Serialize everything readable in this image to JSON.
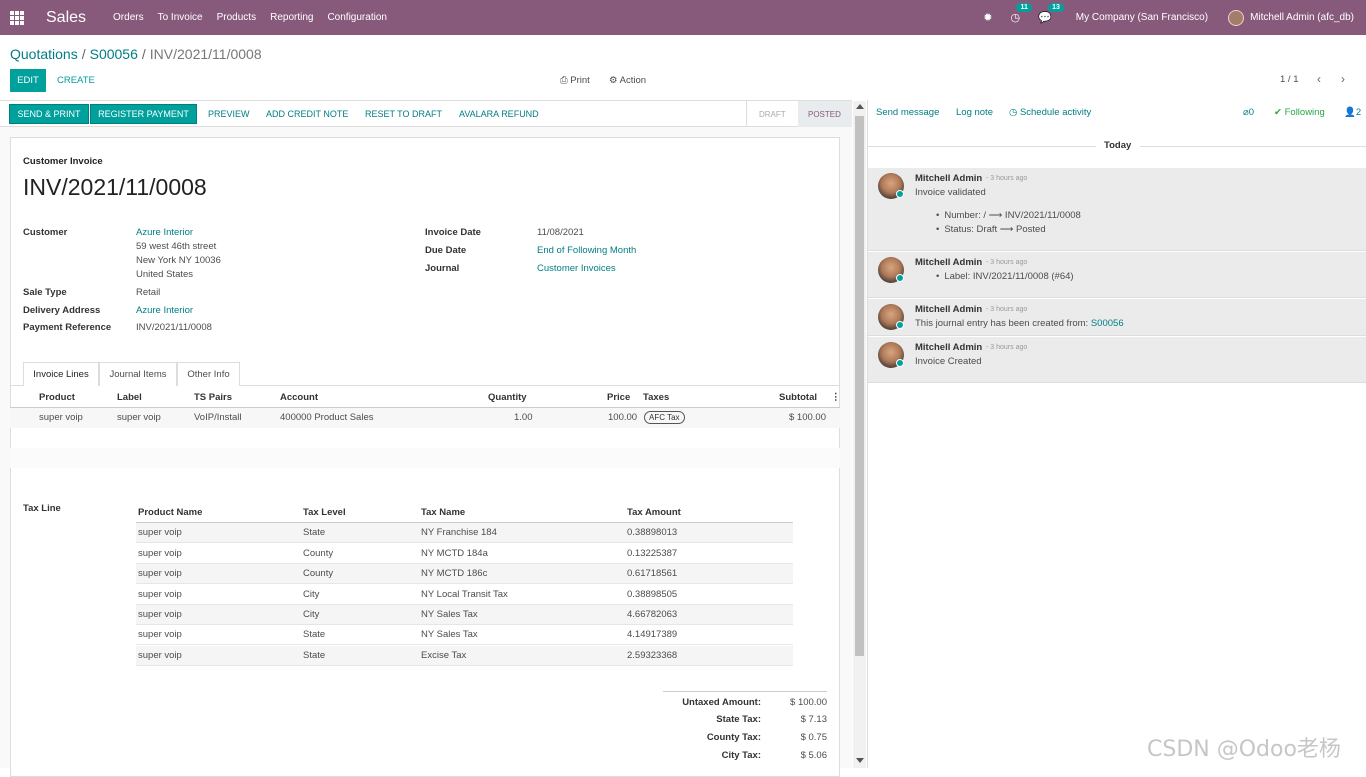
{
  "navbar": {
    "app_name": "Sales",
    "menu": [
      "Orders",
      "To Invoice",
      "Products",
      "Reporting",
      "Configuration"
    ],
    "activity_count": "11",
    "message_count": "13",
    "company": "My Company (San Francisco)",
    "user": "Mitchell Admin (afc_db)"
  },
  "breadcrumb": {
    "root": "Quotations",
    "parent": "S00056",
    "current": "INV/2021/11/0008"
  },
  "control": {
    "edit": "EDIT",
    "create": "CREATE",
    "print": "Print",
    "action": "Action",
    "pager": "1 / 1"
  },
  "statusbar": {
    "send_print": "SEND & PRINT",
    "register_payment": "REGISTER PAYMENT",
    "preview": "PREVIEW",
    "add_credit_note": "ADD CREDIT NOTE",
    "reset_to_draft": "RESET TO DRAFT",
    "avalara_refund": "AVALARA REFUND",
    "stage_draft": "DRAFT",
    "stage_posted": "POSTED"
  },
  "invoice": {
    "type": "Customer Invoice",
    "number": "INV/2021/11/0008",
    "customer_label": "Customer",
    "customer": "Azure Interior",
    "address1": "59 west 46th street",
    "address2": "New York NY 10036",
    "address3": "United States",
    "sale_type_label": "Sale Type",
    "sale_type": "Retail",
    "delivery_label": "Delivery Address",
    "delivery": "Azure Interior",
    "payment_ref_label": "Payment Reference",
    "payment_ref": "INV/2021/11/0008",
    "invoice_date_label": "Invoice Date",
    "invoice_date": "11/08/2021",
    "due_date_label": "Due Date",
    "due_date": "End of Following Month",
    "journal_label": "Journal",
    "journal": "Customer Invoices"
  },
  "tabs": [
    "Invoice Lines",
    "Journal Items",
    "Other Info"
  ],
  "lines": {
    "headers": [
      "Product",
      "Label",
      "TS Pairs",
      "Account",
      "Quantity",
      "Price",
      "Taxes",
      "Subtotal"
    ],
    "row": {
      "product": "super voip",
      "label": "super voip",
      "ts_pairs": "VoIP/Install",
      "account": "400000 Product Sales",
      "quantity": "1.00",
      "price": "100.00",
      "taxes": "AFC Tax",
      "subtotal": "$ 100.00"
    }
  },
  "tax_line": {
    "label": "Tax Line",
    "headers": [
      "Product Name",
      "Tax Level",
      "Tax Name",
      "Tax Amount"
    ],
    "rows": [
      [
        "super voip",
        "State",
        "NY Franchise 184",
        "0.38898013"
      ],
      [
        "super voip",
        "County",
        "NY MCTD 184a",
        "0.13225387"
      ],
      [
        "super voip",
        "County",
        "NY MCTD 186c",
        "0.61718561"
      ],
      [
        "super voip",
        "City",
        "NY Local Transit Tax",
        "0.38898505"
      ],
      [
        "super voip",
        "City",
        "NY Sales Tax",
        "4.66782063"
      ],
      [
        "super voip",
        "State",
        "NY Sales Tax",
        "4.14917389"
      ],
      [
        "super voip",
        "State",
        "Excise Tax",
        "2.59323368"
      ]
    ]
  },
  "totals": [
    {
      "label": "Untaxed Amount:",
      "value": "$ 100.00"
    },
    {
      "label": "State Tax:",
      "value": "$ 7.13"
    },
    {
      "label": "County Tax:",
      "value": "$ 0.75"
    },
    {
      "label": "City Tax:",
      "value": "$ 5.06"
    }
  ],
  "chatter": {
    "send_message": "Send message",
    "log_note": "Log note",
    "schedule_activity": "Schedule activity",
    "attachments": "0",
    "following": "Following",
    "followers": "2",
    "today": "Today",
    "messages": [
      {
        "author": "Mitchell Admin",
        "time": "- 3 hours ago",
        "body": "Invoice validated",
        "bullets": [
          "Number: / ⟶ INV/2021/11/0008",
          "Status: Draft ⟶ Posted"
        ]
      },
      {
        "author": "Mitchell Admin",
        "time": "- 3 hours ago",
        "body": "",
        "bullets": [
          "Label:  INV/2021/11/0008 (#64)"
        ]
      },
      {
        "author": "Mitchell Admin",
        "time": "- 3 hours ago",
        "body": "This journal entry has been created from: ",
        "link": "S00056"
      },
      {
        "author": "Mitchell Admin",
        "time": "- 3 hours ago",
        "body": "Invoice Created"
      }
    ]
  },
  "watermark": "CSDN @Odoo老杨",
  "colors": {
    "brand": "#875a7b",
    "accent": "#00a09d",
    "link": "#017e84"
  }
}
